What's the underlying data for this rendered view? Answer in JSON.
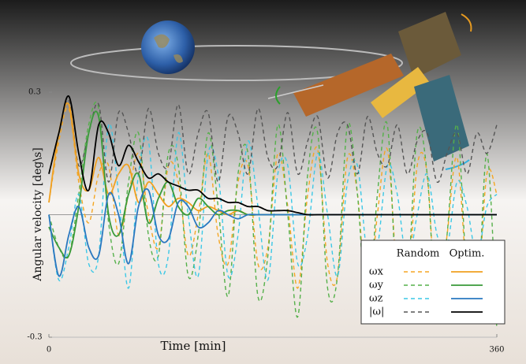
{
  "chart_data": {
    "type": "line",
    "xlabel": "Time [min]",
    "ylabel": "Angular velocity [deg\\s]",
    "xlim": [
      0,
      360
    ],
    "xticks": [
      0,
      360
    ],
    "ylim": [
      -0.3,
      0.3
    ],
    "yticks": [
      -0.3,
      0.3
    ],
    "legend_columns": [
      "Random",
      "Optim."
    ],
    "x": [
      0,
      8,
      16,
      24,
      32,
      40,
      48,
      56,
      64,
      72,
      80,
      88,
      96,
      104,
      112,
      120,
      128,
      136,
      144,
      152,
      160,
      168,
      176,
      184,
      192,
      200,
      208,
      216,
      224,
      232,
      240,
      248,
      256,
      264,
      272,
      280,
      288,
      296,
      304,
      312,
      320,
      328,
      336,
      344,
      352,
      360
    ],
    "series": [
      {
        "name": "ωx",
        "colors": [
          "#f5a623",
          "#f0a020"
        ],
        "random": [
          0.03,
          0.18,
          0.26,
          0.08,
          -0.02,
          0.1,
          0.12,
          -0.05,
          0.05,
          0.15,
          0.0,
          -0.08,
          0.12,
          0.08,
          -0.1,
          0.0,
          0.15,
          -0.05,
          -0.12,
          0.08,
          0.12,
          -0.12,
          -0.08,
          0.15,
          0.02,
          -0.18,
          0.05,
          0.16,
          -0.12,
          -0.15,
          0.14,
          0.05,
          -0.22,
          0.0,
          0.16,
          -0.15,
          -0.2,
          0.12,
          0.1,
          -0.25,
          -0.05,
          0.14,
          -0.15,
          -0.22,
          0.1,
          0.05
        ],
        "optimized": [
          0.03,
          0.2,
          0.27,
          0.1,
          0.06,
          0.14,
          0.05,
          0.1,
          0.12,
          0.03,
          0.08,
          0.05,
          0.02,
          0.04,
          0.03,
          0.01,
          0.02,
          0.01,
          0,
          0.01,
          0,
          0,
          0,
          0,
          0,
          0,
          0,
          0,
          0,
          0,
          0,
          0,
          0,
          0,
          0,
          0,
          0,
          0,
          0,
          0,
          0,
          0,
          0,
          0,
          0,
          0
        ]
      },
      {
        "name": "ωy",
        "colors": [
          "#55b04a",
          "#3a9a3a"
        ],
        "random": [
          0.0,
          -0.08,
          -0.1,
          0.05,
          0.22,
          0.26,
          -0.02,
          -0.12,
          0.08,
          0.2,
          -0.05,
          -0.1,
          0.15,
          0.12,
          -0.15,
          -0.05,
          0.2,
          0.02,
          -0.2,
          0.1,
          0.15,
          -0.2,
          -0.1,
          0.22,
          0.0,
          -0.25,
          0.1,
          0.2,
          -0.18,
          -0.15,
          0.22,
          0.05,
          -0.25,
          0.05,
          0.22,
          -0.2,
          -0.18,
          0.2,
          0.1,
          -0.26,
          -0.05,
          0.22,
          -0.15,
          -0.25,
          0.15,
          -0.28
        ],
        "optimized": [
          -0.03,
          -0.08,
          -0.1,
          0.02,
          0.2,
          0.24,
          0.0,
          -0.05,
          0.05,
          0.1,
          -0.02,
          0.04,
          0.08,
          0.02,
          0.0,
          0.04,
          0.02,
          0.0,
          0.01,
          0.01,
          0,
          0,
          0,
          0,
          0,
          0,
          0,
          0,
          0,
          0,
          0,
          0,
          0,
          0,
          0,
          0,
          0,
          0,
          0,
          0,
          0,
          0,
          0,
          0,
          0,
          0
        ]
      },
      {
        "name": "ωz",
        "colors": [
          "#3cc8e6",
          "#2a78c0"
        ],
        "random": [
          0.0,
          -0.16,
          -0.08,
          0.05,
          -0.12,
          -0.1,
          0.22,
          0.05,
          -0.18,
          0.1,
          0.18,
          -0.12,
          -0.1,
          0.2,
          0.0,
          -0.15,
          0.15,
          0.1,
          -0.15,
          -0.05,
          0.18,
          0.02,
          -0.16,
          0.1,
          0.12,
          -0.12,
          -0.05,
          0.15,
          0.0,
          -0.15,
          0.08,
          0.12,
          -0.1,
          -0.08,
          0.12,
          0.05,
          -0.12,
          0.0,
          0.1,
          -0.05,
          -0.08,
          0.08,
          0.02,
          -0.1,
          0.02,
          0.05
        ],
        "optimized": [
          0.0,
          -0.15,
          -0.05,
          0.02,
          -0.08,
          -0.1,
          0.05,
          0.0,
          -0.12,
          0.02,
          0.06,
          -0.05,
          -0.06,
          0.03,
          0.02,
          -0.03,
          -0.02,
          0.01,
          0.0,
          -0.01,
          0,
          0,
          0,
          0,
          0,
          0,
          0,
          0,
          0,
          0,
          0,
          0,
          0,
          0,
          0,
          0,
          0,
          0,
          0,
          0,
          0,
          0,
          0,
          0,
          0,
          0
        ]
      },
      {
        "name": "|ω|",
        "colors": [
          "#555555",
          "#000000"
        ],
        "random": [
          0.1,
          0.2,
          0.28,
          0.12,
          0.2,
          0.27,
          0.08,
          0.25,
          0.2,
          0.1,
          0.26,
          0.15,
          0.12,
          0.27,
          0.1,
          0.2,
          0.25,
          0.08,
          0.24,
          0.2,
          0.1,
          0.26,
          0.14,
          0.12,
          0.25,
          0.1,
          0.18,
          0.24,
          0.09,
          0.2,
          0.22,
          0.1,
          0.24,
          0.15,
          0.12,
          0.22,
          0.1,
          0.18,
          0.2,
          0.08,
          0.15,
          0.2,
          0.1,
          0.2,
          0.15,
          0.22
        ],
        "optimized": [
          0.1,
          0.2,
          0.29,
          0.15,
          0.06,
          0.22,
          0.2,
          0.12,
          0.17,
          0.13,
          0.09,
          0.1,
          0.08,
          0.07,
          0.06,
          0.06,
          0.04,
          0.04,
          0.03,
          0.03,
          0.02,
          0.02,
          0.01,
          0.01,
          0.01,
          0.005,
          0,
          0,
          0,
          0,
          0,
          0,
          0,
          0,
          0,
          0,
          0,
          0,
          0,
          0,
          0,
          0,
          0,
          0,
          0,
          0
        ]
      }
    ]
  }
}
